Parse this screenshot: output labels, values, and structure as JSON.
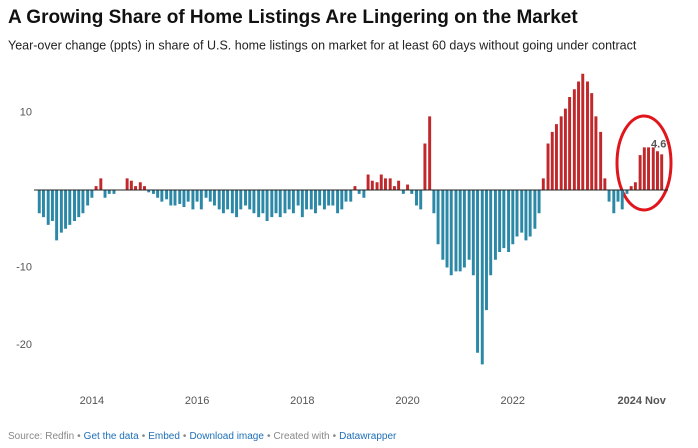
{
  "chart_data": {
    "type": "bar",
    "title": "A Growing Share of Home Listings Are Lingering on the Market",
    "subtitle": "Year-over change (ppts) in share of U.S. home listings on market for at least 60 days without going under contract",
    "x": [
      2013,
      2013.08,
      2013.17,
      2013.25,
      2013.33,
      2013.42,
      2013.5,
      2013.58,
      2013.67,
      2013.75,
      2013.83,
      2013.92,
      2014,
      2014.08,
      2014.17,
      2014.25,
      2014.33,
      2014.42,
      2014.5,
      2014.58,
      2014.67,
      2014.75,
      2014.83,
      2014.92,
      2015,
      2015.08,
      2015.17,
      2015.25,
      2015.33,
      2015.42,
      2015.5,
      2015.58,
      2015.67,
      2015.75,
      2015.83,
      2015.92,
      2016,
      2016.08,
      2016.17,
      2016.25,
      2016.33,
      2016.42,
      2016.5,
      2016.58,
      2016.67,
      2016.75,
      2016.83,
      2016.92,
      2017,
      2017.08,
      2017.17,
      2017.25,
      2017.33,
      2017.42,
      2017.5,
      2017.58,
      2017.67,
      2017.75,
      2017.83,
      2017.92,
      2018,
      2018.08,
      2018.17,
      2018.25,
      2018.33,
      2018.42,
      2018.5,
      2018.58,
      2018.67,
      2018.75,
      2018.83,
      2018.92,
      2019,
      2019.08,
      2019.17,
      2019.25,
      2019.33,
      2019.42,
      2019.5,
      2019.58,
      2019.67,
      2019.75,
      2019.83,
      2019.92,
      2020,
      2020.08,
      2020.17,
      2020.25,
      2020.33,
      2020.42,
      2020.5,
      2020.58,
      2020.67,
      2020.75,
      2020.83,
      2020.92,
      2021,
      2021.08,
      2021.17,
      2021.25,
      2021.33,
      2021.42,
      2021.5,
      2021.58,
      2021.67,
      2021.75,
      2021.83,
      2021.92,
      2022,
      2022.08,
      2022.17,
      2022.25,
      2022.33,
      2022.42,
      2022.5,
      2022.58,
      2022.67,
      2022.75,
      2022.83,
      2022.92,
      2023,
      2023.08,
      2023.17,
      2023.25,
      2023.33,
      2023.42,
      2023.5,
      2023.58,
      2023.67,
      2023.75,
      2023.83,
      2023.92,
      2024,
      2024.08,
      2024.17,
      2024.25,
      2024.33,
      2024.42,
      2024.5,
      2024.58,
      2024.67,
      2024.75,
      2024.83
    ],
    "values": [
      -3,
      -3.5,
      -4.5,
      -4,
      -6.5,
      -5.5,
      -5,
      -4.5,
      -4,
      -3.5,
      -3,
      -2,
      -1,
      0.5,
      1.5,
      -1,
      -0.5,
      -0.5,
      0,
      0,
      1.5,
      1.2,
      0.5,
      1,
      0.5,
      -0.3,
      -0.5,
      -1,
      -1.5,
      -1.2,
      -2,
      -2,
      -1.8,
      -2.2,
      -1.5,
      -2.5,
      -1.5,
      -2.5,
      -1,
      -1.5,
      -2,
      -2.5,
      -3,
      -2.5,
      -3,
      -3.5,
      -2.5,
      -2,
      -2.5,
      -3,
      -3.5,
      -3,
      -4,
      -3.5,
      -3,
      -3.5,
      -3,
      -2.5,
      -3,
      -2,
      -3.5,
      -2.5,
      -2.5,
      -3,
      -2,
      -2.5,
      -2,
      -2,
      -3,
      -2.5,
      -1.5,
      -1.5,
      0.5,
      -0.5,
      -1,
      2,
      1.2,
      1,
      2,
      1.5,
      1.5,
      0.5,
      1.2,
      -0.5,
      0.7,
      -0.5,
      -2,
      -2.5,
      6,
      9.5,
      -3,
      -7,
      -9,
      -10,
      -11,
      -10.5,
      -10.5,
      -10,
      -9,
      -11,
      -21,
      -22.5,
      -15.5,
      -11,
      -9,
      -8,
      -7.5,
      -8,
      -7,
      -6,
      -5.5,
      -6.5,
      -6,
      -5,
      -3,
      1.5,
      6,
      7.5,
      8.5,
      9.5,
      10.5,
      12,
      13,
      14,
      15,
      14,
      12.5,
      9.5,
      7.5,
      1.5,
      -1.5,
      -3,
      -1.5,
      -2.5,
      -0.5,
      0.5,
      1,
      4.5,
      5.5,
      5.5,
      5.5,
      5,
      4.6
    ],
    "positive_color": "#c0282b",
    "negative_color": "#2b88a6",
    "xlim": [
      2012.9,
      2024.95
    ],
    "xticks": [
      2014,
      2016,
      2018,
      2020,
      2022
    ],
    "ylim": [
      -24,
      16
    ],
    "yticks": [
      -20,
      -10,
      10
    ],
    "grid": false,
    "label_last": true,
    "highlight": {
      "label": "2024 Nov",
      "x": 2024.83
    },
    "footer": [
      {
        "text": "Source: Redfin",
        "link": false
      },
      {
        "text": "Get the data",
        "link": true
      },
      {
        "text": "Embed",
        "link": true
      },
      {
        "text": "Download image",
        "link": true
      },
      {
        "text": "Created with",
        "link": false
      },
      {
        "text": "Datawrapper",
        "link": true
      }
    ],
    "footer_separator": "•"
  }
}
